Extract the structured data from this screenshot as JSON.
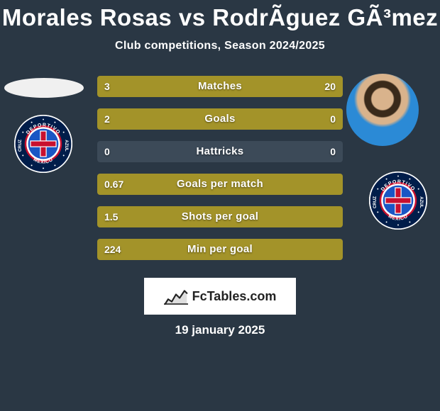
{
  "title": "Morales Rosas vs RodrÃ­guez GÃ³mez",
  "subtitle": "Club competitions, Season 2024/2025",
  "date": "19 january 2025",
  "fctables_label": "FcTables.com",
  "colors": {
    "background": "#2a3744",
    "bar_bg": "#3c4a58",
    "bar_fill": "#a39329",
    "white": "#ffffff"
  },
  "club_badge": {
    "outer": "#001d4a",
    "ring": "#c8102e",
    "center": "#1a56c4",
    "cross": "#c8102e",
    "text_top": "DEPORTIVO",
    "text_left": "CRUZ",
    "text_right": "AZUL",
    "text_bottom": "MEXICO"
  },
  "stats": [
    {
      "label": "Matches",
      "left_val": "3",
      "right_val": "20",
      "left_pct": 13,
      "right_pct": 87
    },
    {
      "label": "Goals",
      "left_val": "2",
      "right_val": "0",
      "left_pct": 100,
      "right_pct": 0
    },
    {
      "label": "Hattricks",
      "left_val": "0",
      "right_val": "0",
      "left_pct": 0,
      "right_pct": 0
    },
    {
      "label": "Goals per match",
      "left_val": "0.67",
      "right_val": "",
      "left_pct": 100,
      "right_pct": 0
    },
    {
      "label": "Shots per goal",
      "left_val": "1.5",
      "right_val": "",
      "left_pct": 100,
      "right_pct": 0
    },
    {
      "label": "Min per goal",
      "left_val": "224",
      "right_val": "",
      "left_pct": 100,
      "right_pct": 0
    }
  ]
}
